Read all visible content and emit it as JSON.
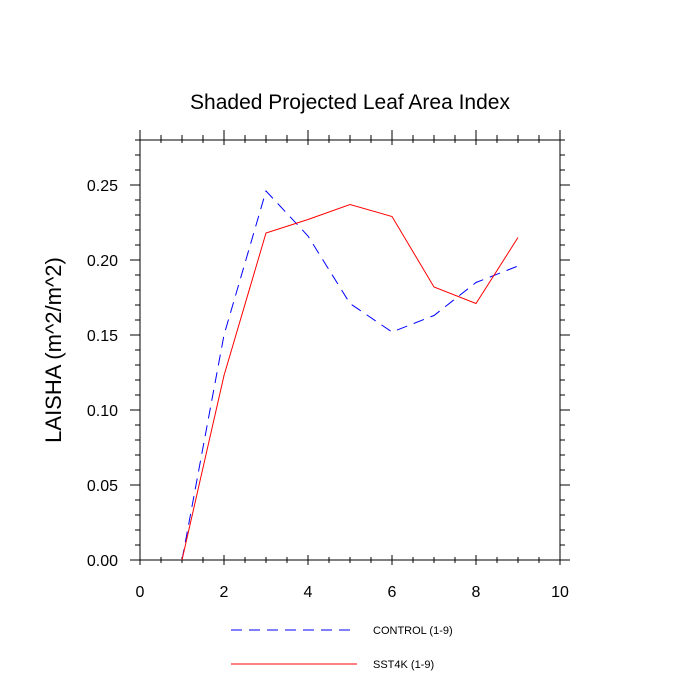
{
  "chart_data": {
    "type": "line",
    "title": "Shaded Projected Leaf Area Index",
    "xlabel": "",
    "ylabel": "LAISHA  (m^2/m^2)",
    "xlim": [
      0,
      10
    ],
    "ylim": [
      0,
      0.28
    ],
    "xticks": [
      0,
      2,
      4,
      6,
      8,
      10
    ],
    "xtick_labels": [
      "0",
      "2",
      "4",
      "6",
      "8",
      "10"
    ],
    "yticks": [
      0,
      0.05,
      0.1,
      0.15,
      0.2,
      0.25
    ],
    "ytick_labels": [
      "0.00",
      "0.05",
      "0.10",
      "0.15",
      "0.20",
      "0.25"
    ],
    "grid": false,
    "legend_position": "bottom",
    "series": [
      {
        "name": "CONTROL (1-9)",
        "color": "#0000ff",
        "style": "dashed",
        "x": [
          1,
          2,
          3,
          4,
          5,
          6,
          7,
          8,
          9
        ],
        "values": [
          0.0,
          0.15,
          0.246,
          0.216,
          0.171,
          0.152,
          0.163,
          0.185,
          0.196
        ]
      },
      {
        "name": "SST4K (1-9)",
        "color": "#ff0000",
        "style": "solid",
        "x": [
          1,
          2,
          3,
          4,
          5,
          6,
          7,
          8,
          9
        ],
        "values": [
          0.0,
          0.123,
          0.218,
          0.227,
          0.237,
          0.229,
          0.182,
          0.171,
          0.215
        ]
      }
    ]
  }
}
